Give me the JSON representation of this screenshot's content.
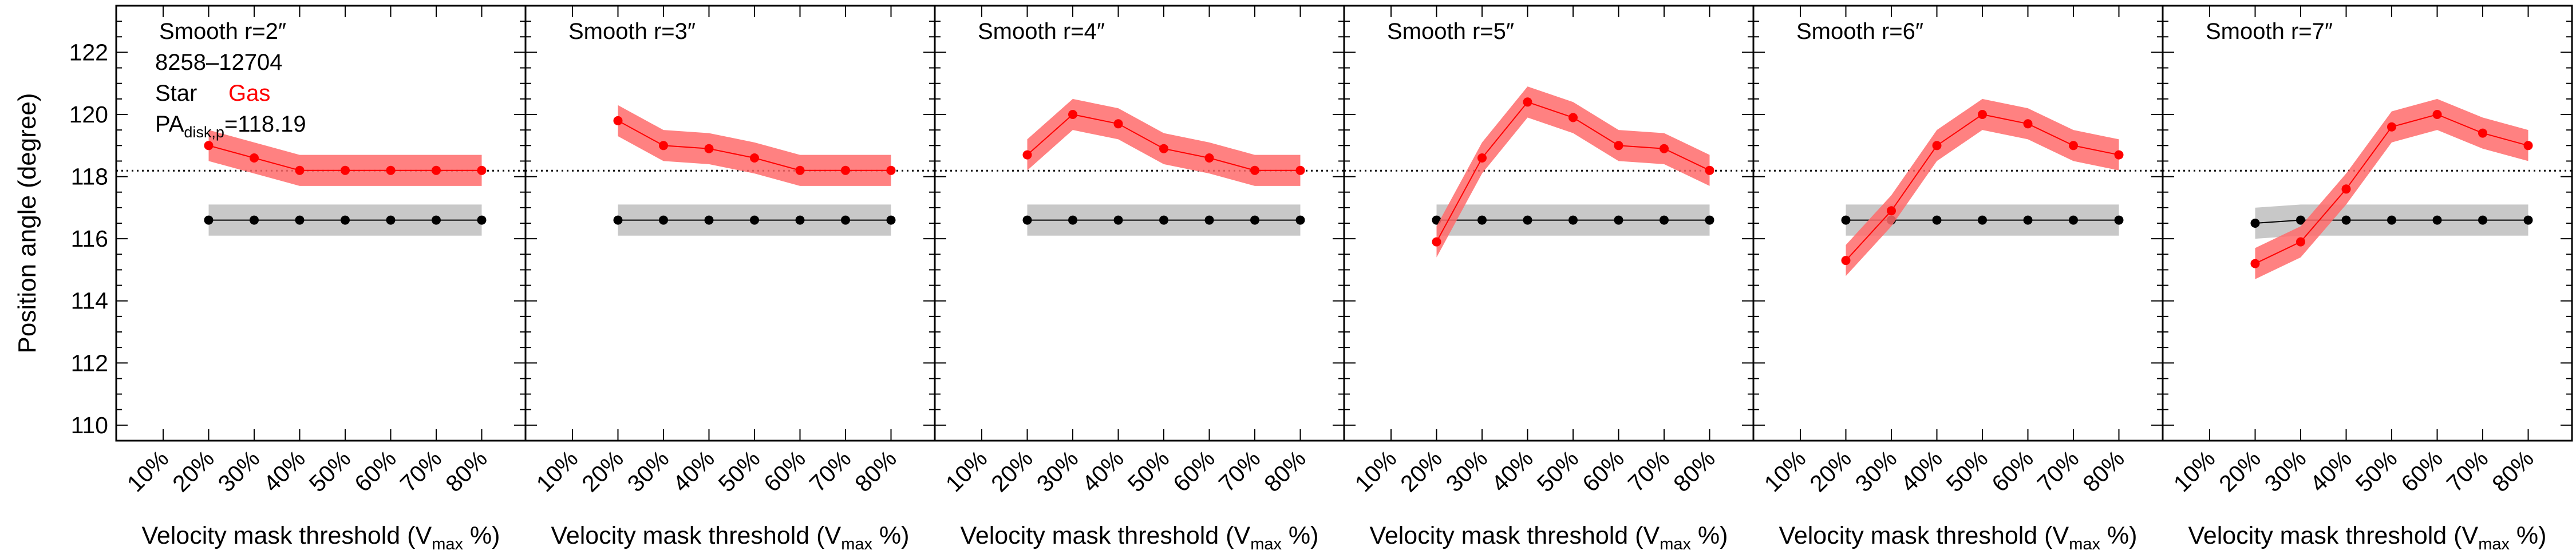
{
  "figure": {
    "ylabel": "Position angle (degree)",
    "colors": {
      "star": "#000000",
      "gas": "#ff0000",
      "gas_band": "#ff6b6b",
      "star_band": "#c8c8c8",
      "reference_line": "#000000"
    }
  },
  "info": {
    "galaxy_id": "8258–12704",
    "legend_star": "Star",
    "legend_gas": "Gas",
    "pa_label": "PA",
    "pa_subscript": "disk,p",
    "pa_value": "=118.19"
  },
  "chart_data": [
    {
      "type": "line",
      "title": "Smooth r=2″",
      "xlabel_main": "Velocity mask threshold (V",
      "xlabel_sub": "max",
      "xlabel_end": " %)",
      "categories": [
        "10%",
        "20%",
        "30%",
        "40%",
        "50%",
        "60%",
        "70%",
        "80%"
      ],
      "ylim": [
        109.5,
        123.5
      ],
      "yticks": [
        110,
        112,
        114,
        116,
        118,
        120,
        122
      ],
      "reference_line": 118.19,
      "series": [
        {
          "name": "Star",
          "x": [
            "20%",
            "30%",
            "40%",
            "50%",
            "60%",
            "70%",
            "80%"
          ],
          "values": [
            116.6,
            116.6,
            116.6,
            116.6,
            116.6,
            116.6,
            116.6
          ],
          "err": 0.5
        },
        {
          "name": "Gas",
          "x": [
            "20%",
            "30%",
            "40%",
            "50%",
            "60%",
            "70%",
            "80%"
          ],
          "values": [
            119.0,
            118.6,
            118.2,
            118.2,
            118.2,
            118.2,
            118.2
          ],
          "err": 0.5
        }
      ]
    },
    {
      "type": "line",
      "title": "Smooth r=3″",
      "xlabel_main": "Velocity mask threshold (V",
      "xlabel_sub": "max",
      "xlabel_end": " %)",
      "categories": [
        "10%",
        "20%",
        "30%",
        "40%",
        "50%",
        "60%",
        "70%",
        "80%"
      ],
      "ylim": [
        109.5,
        123.5
      ],
      "reference_line": 118.19,
      "series": [
        {
          "name": "Star",
          "x": [
            "20%",
            "30%",
            "40%",
            "50%",
            "60%",
            "70%",
            "80%"
          ],
          "values": [
            116.6,
            116.6,
            116.6,
            116.6,
            116.6,
            116.6,
            116.6
          ],
          "err": 0.5
        },
        {
          "name": "Gas",
          "x": [
            "20%",
            "30%",
            "40%",
            "50%",
            "60%",
            "70%",
            "80%"
          ],
          "values": [
            119.8,
            119.0,
            118.9,
            118.6,
            118.2,
            118.2,
            118.2
          ],
          "err": 0.5
        }
      ]
    },
    {
      "type": "line",
      "title": "Smooth r=4″",
      "xlabel_main": "Velocity mask threshold (V",
      "xlabel_sub": "max",
      "xlabel_end": " %)",
      "categories": [
        "10%",
        "20%",
        "30%",
        "40%",
        "50%",
        "60%",
        "70%",
        "80%"
      ],
      "ylim": [
        109.5,
        123.5
      ],
      "reference_line": 118.19,
      "series": [
        {
          "name": "Star",
          "x": [
            "20%",
            "30%",
            "40%",
            "50%",
            "60%",
            "70%",
            "80%"
          ],
          "values": [
            116.6,
            116.6,
            116.6,
            116.6,
            116.6,
            116.6,
            116.6
          ],
          "err": 0.5
        },
        {
          "name": "Gas",
          "x": [
            "20%",
            "30%",
            "40%",
            "50%",
            "60%",
            "70%",
            "80%"
          ],
          "values": [
            118.7,
            120.0,
            119.7,
            118.9,
            118.6,
            118.2,
            118.2
          ],
          "err": 0.5
        }
      ]
    },
    {
      "type": "line",
      "title": "Smooth r=5″",
      "xlabel_main": "Velocity mask threshold (V",
      "xlabel_sub": "max",
      "xlabel_end": " %)",
      "categories": [
        "10%",
        "20%",
        "30%",
        "40%",
        "50%",
        "60%",
        "70%",
        "80%"
      ],
      "ylim": [
        109.5,
        123.5
      ],
      "reference_line": 118.19,
      "series": [
        {
          "name": "Star",
          "x": [
            "20%",
            "30%",
            "40%",
            "50%",
            "60%",
            "70%",
            "80%"
          ],
          "values": [
            116.6,
            116.6,
            116.6,
            116.6,
            116.6,
            116.6,
            116.6
          ],
          "err": 0.5
        },
        {
          "name": "Gas",
          "x": [
            "20%",
            "30%",
            "40%",
            "50%",
            "60%",
            "70%",
            "80%"
          ],
          "values": [
            115.9,
            118.6,
            120.4,
            119.9,
            119.0,
            118.9,
            118.2
          ],
          "err": 0.5
        }
      ]
    },
    {
      "type": "line",
      "title": "Smooth r=6″",
      "xlabel_main": "Velocity mask threshold (V",
      "xlabel_sub": "max",
      "xlabel_end": " %)",
      "categories": [
        "10%",
        "20%",
        "30%",
        "40%",
        "50%",
        "60%",
        "70%",
        "80%"
      ],
      "ylim": [
        109.5,
        123.5
      ],
      "reference_line": 118.19,
      "series": [
        {
          "name": "Star",
          "x": [
            "20%",
            "30%",
            "40%",
            "50%",
            "60%",
            "70%",
            "80%"
          ],
          "values": [
            116.6,
            116.6,
            116.6,
            116.6,
            116.6,
            116.6,
            116.6
          ],
          "err": 0.5
        },
        {
          "name": "Gas",
          "x": [
            "20%",
            "30%",
            "40%",
            "50%",
            "60%",
            "70%",
            "80%"
          ],
          "values": [
            115.3,
            116.9,
            119.0,
            120.0,
            119.7,
            119.0,
            118.7
          ],
          "err": 0.5
        }
      ]
    },
    {
      "type": "line",
      "title": "Smooth r=7″",
      "xlabel_main": "Velocity mask threshold (V",
      "xlabel_sub": "max",
      "xlabel_end": " %)",
      "categories": [
        "10%",
        "20%",
        "30%",
        "40%",
        "50%",
        "60%",
        "70%",
        "80%"
      ],
      "ylim": [
        109.5,
        123.5
      ],
      "reference_line": 118.19,
      "series": [
        {
          "name": "Star",
          "x": [
            "20%",
            "30%",
            "40%",
            "50%",
            "60%",
            "70%",
            "80%"
          ],
          "values": [
            116.5,
            116.6,
            116.6,
            116.6,
            116.6,
            116.6,
            116.6
          ],
          "err": 0.5
        },
        {
          "name": "Gas",
          "x": [
            "20%",
            "30%",
            "40%",
            "50%",
            "60%",
            "70%",
            "80%"
          ],
          "values": [
            115.2,
            115.9,
            117.6,
            119.6,
            120.0,
            119.4,
            119.0
          ],
          "err": 0.5
        }
      ]
    }
  ]
}
